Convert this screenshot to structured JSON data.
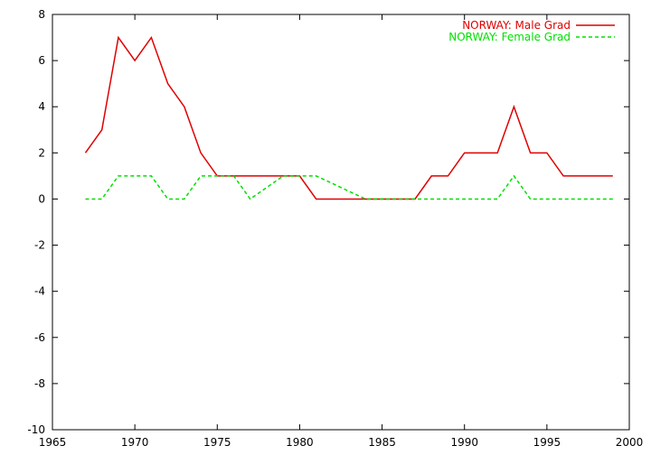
{
  "chart_data": {
    "type": "line",
    "xlim": [
      1965,
      2000
    ],
    "ylim": [
      -10,
      8
    ],
    "x_ticks": [
      1965,
      1970,
      1975,
      1980,
      1985,
      1990,
      1995,
      2000
    ],
    "y_ticks": [
      -10,
      -8,
      -6,
      -4,
      -2,
      0,
      2,
      4,
      6,
      8
    ],
    "legend_position": "top-right",
    "grid": false,
    "x": [
      1967,
      1968,
      1969,
      1970,
      1971,
      1972,
      1973,
      1974,
      1975,
      1976,
      1977,
      1978,
      1979,
      1980,
      1981,
      1982,
      1983,
      1984,
      1985,
      1986,
      1987,
      1988,
      1989,
      1990,
      1991,
      1992,
      1993,
      1994,
      1995,
      1996,
      1997,
      1998,
      1999
    ],
    "series": [
      {
        "name": "NORWAY: Male Grad",
        "color": "#e00000",
        "dash": "solid",
        "values": [
          2,
          3,
          7,
          6,
          7,
          5,
          4,
          2,
          1,
          1,
          1,
          1,
          1,
          1,
          0,
          0,
          0,
          0,
          0,
          0,
          0,
          1,
          1,
          2,
          2,
          2,
          4,
          2,
          2,
          1,
          1,
          1,
          1
        ]
      },
      {
        "name": "NORWAY: Female Grad",
        "color": "#00e000",
        "dash": "dashed",
        "values": [
          0,
          0,
          1,
          1,
          1,
          0,
          0,
          1,
          1,
          1,
          0,
          0.5,
          1,
          1,
          1,
          0.67,
          0.33,
          0,
          0,
          0,
          0,
          0,
          0,
          0,
          0,
          0,
          1,
          0,
          0,
          0,
          0,
          0,
          0
        ]
      }
    ]
  }
}
